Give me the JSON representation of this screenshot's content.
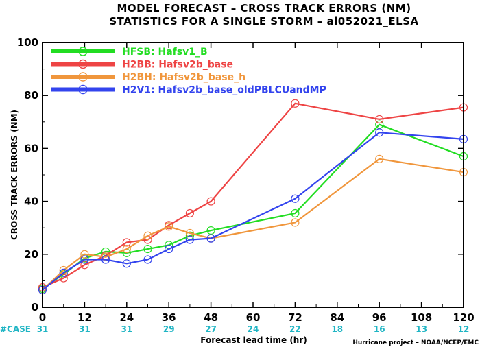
{
  "chart_data": {
    "type": "line",
    "title": "MODEL FORECAST – CROSS TRACK ERRORS (NM)",
    "subtitle": "STATISTICS FOR A SINGLE STORM – al052021_ELSA",
    "ylabel": "CROSS TRACK ERRORS (NM)",
    "xlabel": "Forecast lead time (hr)",
    "xlim": [
      0,
      120
    ],
    "ylim": [
      0,
      100
    ],
    "x_ticks": [
      "0",
      "12",
      "24",
      "36",
      "48",
      "60",
      "72",
      "84",
      "96",
      "108",
      "120"
    ],
    "y_ticks": [
      "0",
      "20",
      "40",
      "60",
      "80",
      "100"
    ],
    "case_label": "#CASE",
    "case_counts": [
      "31",
      "31",
      "31",
      "29",
      "27",
      "24",
      "22",
      "18",
      "16",
      "13",
      "12"
    ],
    "credit": "Hurricane project – NOAA/NCEP/EMC",
    "grid": false,
    "legend_position": "top-left",
    "series": [
      {
        "name": "HFSB: Hafsv1_B",
        "color": "#22dd22",
        "x": [
          0,
          6,
          12,
          18,
          24,
          30,
          36,
          42,
          48,
          72,
          96,
          120
        ],
        "y": [
          7,
          12.5,
          18.5,
          21,
          20.5,
          22,
          23.5,
          27,
          29,
          35.5,
          69,
          57
        ]
      },
      {
        "name": "H2BB: Hafsv2b_base",
        "color": "#ee4444",
        "x": [
          0,
          6,
          12,
          18,
          24,
          30,
          36,
          42,
          48,
          72,
          96,
          120
        ],
        "y": [
          7.5,
          11,
          16,
          19.5,
          24.5,
          25.5,
          31,
          35.5,
          40,
          77,
          71,
          75.5
        ]
      },
      {
        "name": "H2BH: Hafsv2b_base_h",
        "color": "#f0963c",
        "x": [
          0,
          6,
          12,
          18,
          24,
          30,
          36,
          42,
          48,
          72,
          96,
          120
        ],
        "y": [
          6.5,
          14,
          20,
          19,
          22,
          27,
          30.5,
          28,
          26,
          32,
          56,
          51
        ]
      },
      {
        "name": "H2V1: Hafsv2b_base_oldPBLCUandMP",
        "color": "#3344ee",
        "x": [
          0,
          6,
          12,
          18,
          24,
          30,
          36,
          42,
          48,
          72,
          96,
          120
        ],
        "y": [
          6.5,
          13,
          18,
          18,
          16.5,
          18,
          22,
          25.5,
          26,
          41,
          66,
          63.5
        ]
      }
    ]
  }
}
